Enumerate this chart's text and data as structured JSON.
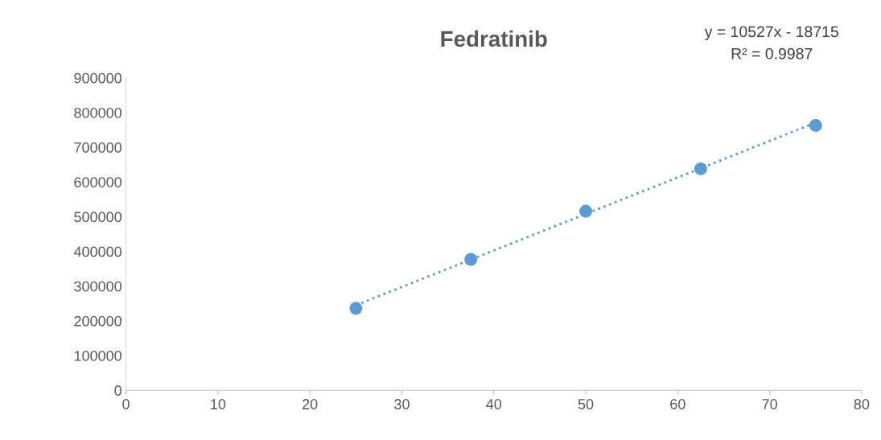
{
  "chart_data": {
    "type": "scatter",
    "title": "Fedratinib",
    "series": [
      {
        "color": "#5b9bd5",
        "x": [
          25,
          37.5,
          50,
          62.5,
          75
        ],
        "values": [
          236000,
          377000,
          516000,
          638000,
          763000
        ],
        "marker": "circle"
      },
      {
        "type": "line",
        "color": "#5b9bd5",
        "x": [
          25,
          75
        ],
        "values": [
          245000,
          771000
        ],
        "line_style": "dotted",
        "marker": "none"
      }
    ],
    "xlim": [
      0,
      80
    ],
    "xticks": [
      0,
      10,
      20,
      30,
      40,
      50,
      60,
      70,
      80
    ],
    "ylim": [
      0,
      900000
    ],
    "yticks": [
      0,
      100000,
      200000,
      300000,
      400000,
      500000,
      600000,
      700000,
      800000,
      900000
    ],
    "grid": false,
    "legend": false,
    "annotations": [
      "y = 10527x - 18715",
      "R² = 0.9987"
    ]
  }
}
